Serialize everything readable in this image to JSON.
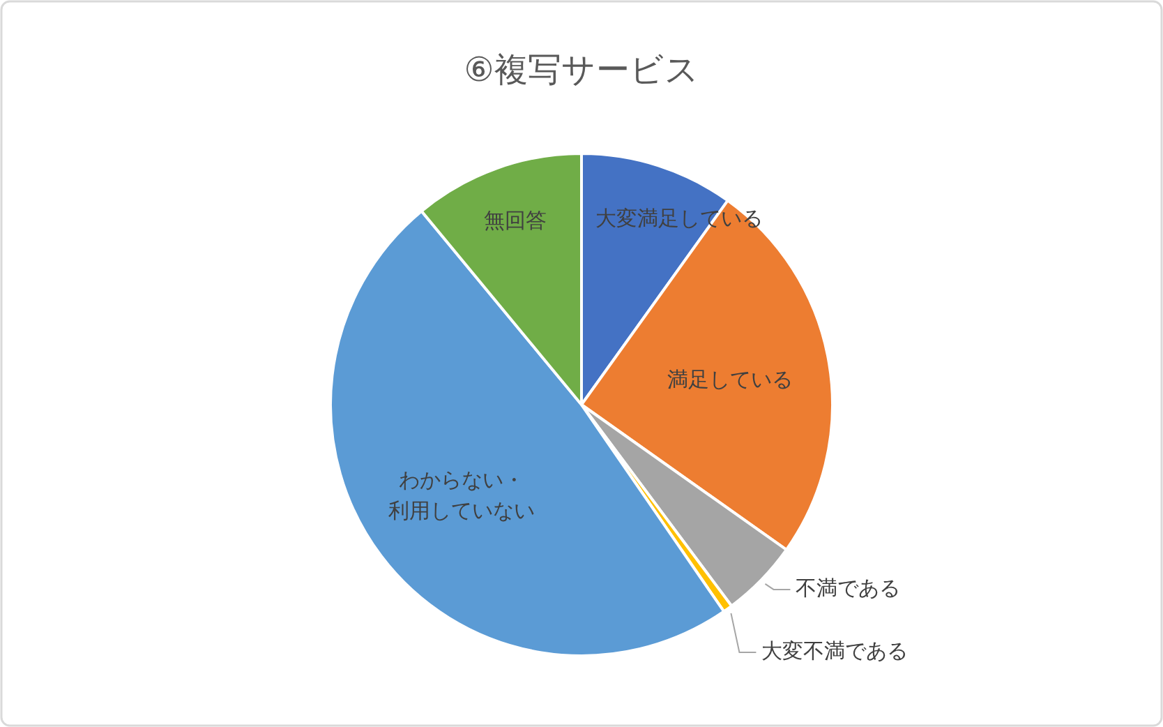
{
  "chart_data": {
    "type": "pie",
    "title": "⑥複写サービス",
    "categories": [
      "大変満足している",
      "満足している",
      "不満である",
      "大変不満である",
      "わからない・利用していない",
      "無回答"
    ],
    "values": [
      9.9,
      24.9,
      5.0,
      0.6,
      48.6,
      11.0
    ],
    "colors": [
      "#4472c4",
      "#ed7d31",
      "#a5a5a5",
      "#ffc000",
      "#5b9bd5",
      "#70ad47"
    ],
    "legend": false
  }
}
